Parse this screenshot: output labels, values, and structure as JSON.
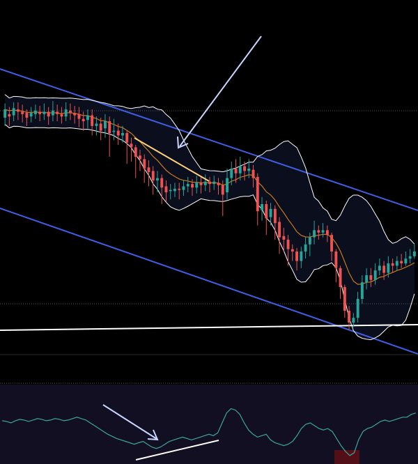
{
  "colors": {
    "background": "#000000",
    "bollinger_band": "#ffffff",
    "bollinger_fill": "#0b1020",
    "ema": "#c97a1a",
    "channel": "#3f5fe6",
    "support": "#ffffff",
    "bull": "#26a69a",
    "bear": "#ef5350",
    "annotation_arrow": "#c9d6ff",
    "trend_highlight": "#ffd27a",
    "oscillator_line": "#3aa79b",
    "oscillator_bg": "#120f22",
    "oscillator_oversold": "#5a0f16",
    "dotted_grid": "#5a5a5a"
  },
  "chart_data": [
    {
      "type": "candlestick",
      "series": [
        {
          "name": "",
          "kind": "ohlc",
          "ohlc": [
            [
              183,
              190,
              176,
              195
            ],
            [
              186,
              184,
              176,
              192
            ],
            [
              185,
              191,
              180,
              196
            ],
            [
              190,
              188,
              181,
              196
            ],
            [
              188,
              186,
              179,
              194
            ],
            [
              187,
              183,
              176,
              190
            ],
            [
              184,
              187,
              179,
              192
            ],
            [
              186,
              189,
              182,
              194
            ],
            [
              188,
              186,
              180,
              193
            ],
            [
              186,
              188,
              181,
              195
            ],
            [
              188,
              184,
              177,
              192
            ],
            [
              185,
              189,
              180,
              197
            ],
            [
              188,
              186,
              180,
              194
            ],
            [
              186,
              184,
              178,
              192
            ],
            [
              184,
              190,
              180,
              196
            ],
            [
              189,
              187,
              181,
              195
            ],
            [
              187,
              185,
              178,
              193
            ],
            [
              186,
              182,
              175,
              192
            ],
            [
              182,
              180,
              172,
              188
            ],
            [
              181,
              185,
              174,
              190
            ],
            [
              185,
              176,
              168,
              190
            ],
            [
              176,
              178,
              168,
              184
            ],
            [
              178,
              172,
              164,
              183
            ],
            [
              174,
              180,
              166,
              186
            ],
            [
              180,
              170,
              150,
              184
            ],
            [
              171,
              172,
              164,
              182
            ],
            [
              172,
              168,
              160,
              178
            ],
            [
              168,
              170,
              162,
              176
            ],
            [
              170,
              162,
              144,
              172
            ],
            [
              161,
              158,
              146,
              166
            ],
            [
              158,
              150,
              132,
              160
            ],
            [
              151,
              148,
              138,
              156
            ],
            [
              148,
              140,
              128,
              152
            ],
            [
              141,
              137,
              125,
              147
            ],
            [
              138,
              130,
              118,
              142
            ],
            [
              130,
              132,
              120,
              138
            ],
            [
              132,
              124,
              110,
              135
            ],
            [
              125,
              120,
              112,
              130
            ],
            [
              121,
              122,
              114,
              127
            ],
            [
              121,
              123,
              116,
              128
            ],
            [
              123,
              122,
              114,
              128
            ],
            [
              122,
              125,
              117,
              130
            ],
            [
              125,
              127,
              120,
              133
            ],
            [
              127,
              124,
              117,
              131
            ],
            [
              124,
              128,
              119,
              134
            ],
            [
              128,
              126,
              119,
              133
            ],
            [
              126,
              129,
              121,
              135
            ],
            [
              129,
              127,
              120,
              133
            ],
            [
              127,
              129,
              122,
              134
            ],
            [
              128,
              126,
              118,
              132
            ],
            [
              126,
              118,
              100,
              130
            ],
            [
              120,
              132,
              114,
              140
            ],
            [
              132,
              140,
              126,
              146
            ],
            [
              140,
              136,
              128,
              148
            ],
            [
              136,
              142,
              130,
              150
            ],
            [
              142,
              138,
              130,
              146
            ],
            [
              138,
              140,
              132,
              148
            ],
            [
              139,
              132,
              124,
              143
            ],
            [
              133,
              104,
              92,
              136
            ],
            [
              105,
              110,
              96,
              116
            ],
            [
              110,
              98,
              84,
              113
            ],
            [
              99,
              106,
              92,
              111
            ],
            [
              106,
              94,
              80,
              109
            ],
            [
              95,
              82,
              68,
              99
            ],
            [
              83,
              80,
              70,
              90
            ],
            [
              80,
              72,
              58,
              84
            ],
            [
              72,
              70,
              62,
              76
            ],
            [
              70,
              62,
              54,
              73
            ],
            [
              62,
              70,
              56,
              74
            ],
            [
              70,
              76,
              64,
              82
            ],
            [
              76,
              82,
              66,
              86
            ],
            [
              82,
              88,
              76,
              96
            ],
            [
              88,
              86,
              80,
              92
            ],
            [
              86,
              88,
              82,
              94
            ],
            [
              88,
              84,
              78,
              92
            ],
            [
              84,
              70,
              62,
              86
            ],
            [
              70,
              56,
              44,
              72
            ],
            [
              56,
              40,
              30,
              58
            ],
            [
              40,
              20,
              14,
              42
            ],
            [
              20,
              10,
              4,
              24
            ],
            [
              10,
              14,
              6,
              18
            ],
            [
              14,
              30,
              10,
              36
            ],
            [
              30,
              44,
              26,
              50
            ],
            [
              44,
              50,
              38,
              56
            ],
            [
              50,
              46,
              40,
              56
            ],
            [
              46,
              54,
              42,
              60
            ],
            [
              54,
              58,
              50,
              64
            ],
            [
              58,
              52,
              46,
              62
            ],
            [
              52,
              60,
              48,
              66
            ],
            [
              60,
              58,
              52,
              64
            ],
            [
              58,
              62,
              54,
              66
            ],
            [
              62,
              60,
              56,
              68
            ],
            [
              60,
              64,
              58,
              70
            ],
            [
              64,
              66,
              60,
              72
            ],
            [
              66,
              70,
              64,
              76
            ]
          ]
        },
        {
          "name": "",
          "kind": "line",
          "role": "ema"
        },
        {
          "name": "",
          "kind": "line",
          "role": "bollinger_upper"
        },
        {
          "name": "",
          "kind": "line",
          "role": "bollinger_lower"
        }
      ],
      "grid": false,
      "title": "",
      "xlabel": "",
      "ylabel": ""
    },
    {
      "type": "line",
      "series": [
        {
          "name": "",
          "values": [
            55,
            54,
            52,
            55,
            57,
            56,
            54,
            56,
            58,
            57,
            55,
            56,
            58,
            57,
            55,
            56,
            58,
            60,
            58,
            56,
            52,
            48,
            44,
            40,
            36,
            33,
            30,
            28,
            26,
            24,
            22,
            24,
            26,
            22,
            18,
            16,
            18,
            22,
            26,
            28,
            30,
            32,
            30,
            28,
            30,
            32,
            34,
            36,
            34,
            38,
            52,
            66,
            72,
            70,
            64,
            52,
            42,
            36,
            32,
            34,
            36,
            28,
            24,
            22,
            20,
            22,
            26,
            34,
            44,
            50,
            52,
            48,
            44,
            42,
            44,
            40,
            30,
            20,
            12,
            6,
            10,
            28,
            40,
            44,
            46,
            50,
            54,
            56,
            54,
            56,
            58,
            60,
            60,
            64,
            66
          ]
        }
      ],
      "levels": [
        70,
        50,
        30
      ],
      "ylim": [
        0,
        100
      ],
      "grid": false
    }
  ]
}
